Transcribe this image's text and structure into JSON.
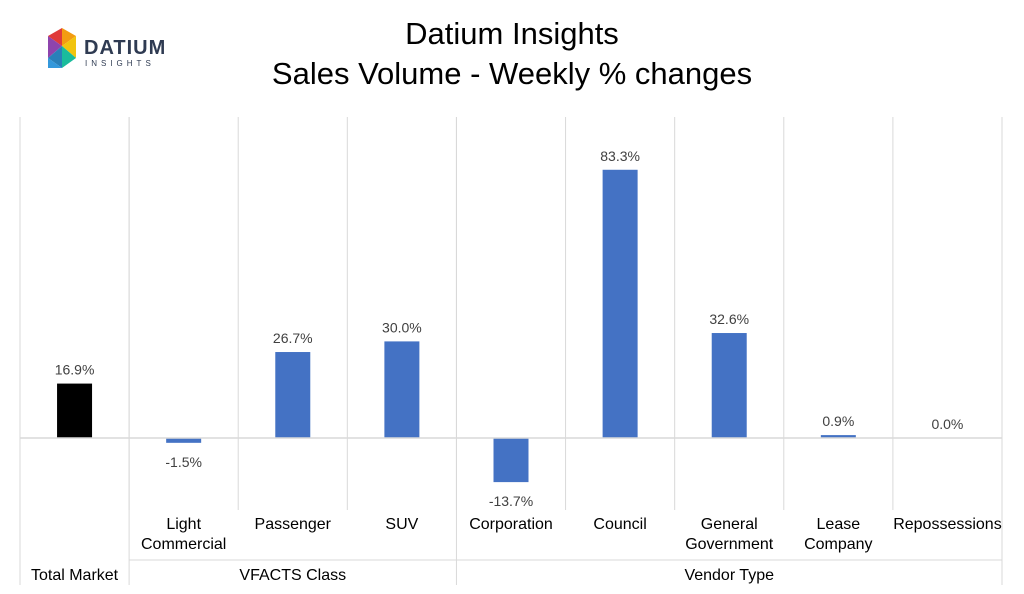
{
  "header": {
    "title_line1": "Datium Insights",
    "title_line2": "Sales Volume - Weekly % changes"
  },
  "logo": {
    "name": "DATIUM",
    "tagline": "INSIGHTS"
  },
  "chart_data": {
    "type": "bar",
    "categories": [
      {
        "label": [
          "Total Market"
        ],
        "value": 16.9,
        "data_label": "16.9%",
        "color": "#000000"
      },
      {
        "label": [
          "Light",
          "Commercial"
        ],
        "value": -1.5,
        "data_label": "-1.5%",
        "color": "#4472C4"
      },
      {
        "label": [
          "Passenger"
        ],
        "value": 26.7,
        "data_label": "26.7%",
        "color": "#4472C4"
      },
      {
        "label": [
          "SUV"
        ],
        "value": 30.0,
        "data_label": "30.0%",
        "color": "#4472C4"
      },
      {
        "label": [
          "Corporation"
        ],
        "value": -13.7,
        "data_label": "-13.7%",
        "color": "#4472C4"
      },
      {
        "label": [
          "Council"
        ],
        "value": 83.3,
        "data_label": "83.3%",
        "color": "#4472C4"
      },
      {
        "label": [
          "General",
          "Government"
        ],
        "value": 32.6,
        "data_label": "32.6%",
        "color": "#4472C4"
      },
      {
        "label": [
          "Lease",
          "Company"
        ],
        "value": 0.9,
        "data_label": "0.9%",
        "color": "#4472C4"
      },
      {
        "label": [
          "Repossessions"
        ],
        "value": 0.0,
        "data_label": "0.0%",
        "color": "#4472C4"
      }
    ],
    "groups": [
      {
        "label": "Total Market",
        "from": 0,
        "to": 0
      },
      {
        "label": "VFACTS Class",
        "from": 1,
        "to": 3
      },
      {
        "label": "Vendor Type",
        "from": 4,
        "to": 8
      }
    ],
    "ylim": [
      -16,
      100
    ],
    "grid": false,
    "legend": "none"
  }
}
